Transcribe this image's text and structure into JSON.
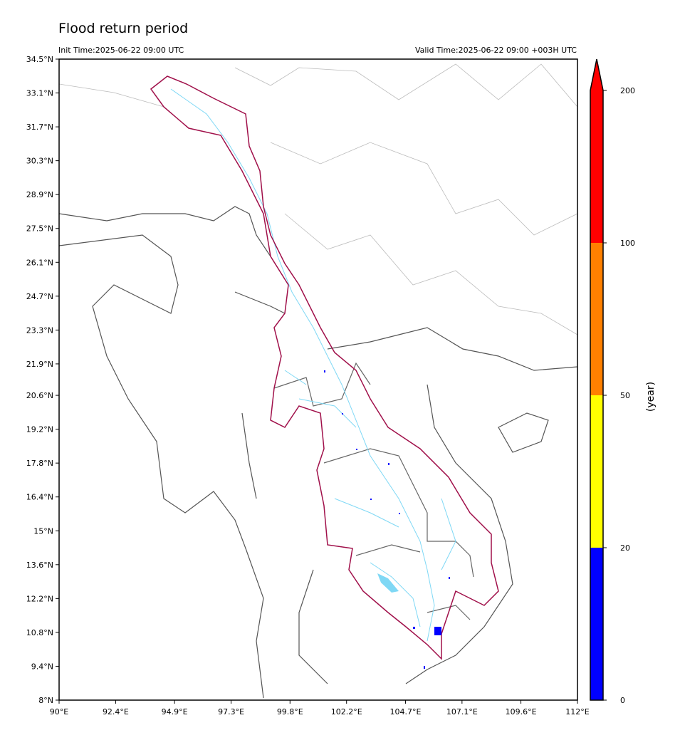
{
  "map": {
    "title": "Flood return period",
    "init_time": "Init Time:2025-06-22 09:00 UTC",
    "valid_time": "Valid Time:2025-06-22 09:00 +003H UTC",
    "xlim": [
      90,
      112
    ],
    "ylim": [
      8,
      34.5
    ],
    "xticks": [
      {
        "value": 90,
        "label": "90°E"
      },
      {
        "value": 92.4,
        "label": "92.4°E"
      },
      {
        "value": 94.9,
        "label": "94.9°E"
      },
      {
        "value": 97.3,
        "label": "97.3°E"
      },
      {
        "value": 99.8,
        "label": "99.8°E"
      },
      {
        "value": 102.2,
        "label": "102.2°E"
      },
      {
        "value": 104.7,
        "label": "104.7°E"
      },
      {
        "value": 107.1,
        "label": "107.1°E"
      },
      {
        "value": 109.6,
        "label": "109.6°E"
      },
      {
        "value": 112,
        "label": "112°E"
      }
    ],
    "yticks": [
      {
        "value": 8,
        "label": "8°N"
      },
      {
        "value": 9.4,
        "label": "9.4°N"
      },
      {
        "value": 10.8,
        "label": "10.8°N"
      },
      {
        "value": 12.2,
        "label": "12.2°N"
      },
      {
        "value": 13.6,
        "label": "13.6°N"
      },
      {
        "value": 15,
        "label": "15°N"
      },
      {
        "value": 16.4,
        "label": "16.4°N"
      },
      {
        "value": 17.8,
        "label": "17.8°N"
      },
      {
        "value": 19.2,
        "label": "19.2°N"
      },
      {
        "value": 20.6,
        "label": "20.6°N"
      },
      {
        "value": 21.9,
        "label": "21.9°N"
      },
      {
        "value": 23.3,
        "label": "23.3°N"
      },
      {
        "value": 24.7,
        "label": "24.7°N"
      },
      {
        "value": 26.1,
        "label": "26.1°N"
      },
      {
        "value": 27.5,
        "label": "27.5°N"
      },
      {
        "value": 28.9,
        "label": "28.9°N"
      },
      {
        "value": 30.3,
        "label": "30.3°N"
      },
      {
        "value": 31.7,
        "label": "31.7°N"
      },
      {
        "value": 33.1,
        "label": "33.1°N"
      },
      {
        "value": 34.5,
        "label": "34.5°N"
      }
    ]
  },
  "colorbar": {
    "label": "(year)",
    "bounds": [
      0,
      20,
      50,
      100,
      200
    ],
    "colors": [
      "#0000ff",
      "#ffff00",
      "#ff8000",
      "#ff0000"
    ],
    "extend": "max"
  }
}
